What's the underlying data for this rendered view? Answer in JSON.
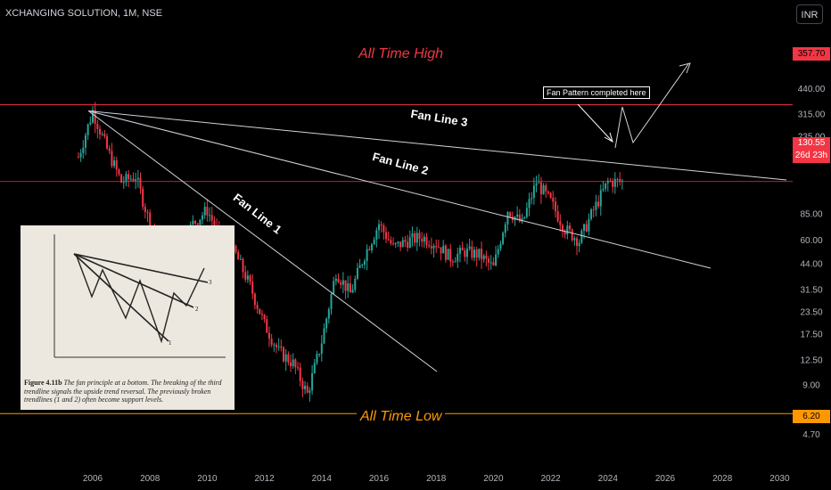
{
  "header": {
    "symbol": "XCHANGING SOLUTION, 1M, NSE",
    "currency": "INR"
  },
  "levels": {
    "ath": {
      "label": "All Time High",
      "value": 357.7,
      "tag": "357.70",
      "color": "#f23645"
    },
    "atl": {
      "label": "All Time Low",
      "value": 6.2,
      "tag": "6.20",
      "color": "#ff9800"
    },
    "current": {
      "value": 130.55,
      "tag": "130.55",
      "countdown": "26d 23h",
      "color": "#f23645"
    }
  },
  "annotations": {
    "fan_line_1": "Fan Line 1",
    "fan_line_2": "Fan Line 2",
    "fan_line_3": "Fan Line 3",
    "note": "Fan Pattern completed here"
  },
  "inset": {
    "figure_label": "Figure 4.11b",
    "caption": "The fan principle at a bottom. The breaking of the third trendline signals the upside trend reversal. The previously broken trendlines (1 and 2) often become support levels.",
    "line_labels": [
      "1",
      "2",
      "3"
    ]
  },
  "chart_data": {
    "type": "candlestick",
    "title": "XCHANGING SOLUTION, 1M, NSE",
    "y_scale": "log",
    "y_ticks": [
      "440.00",
      "315.00",
      "235.00",
      "175.00",
      "85.00",
      "60.00",
      "44.00",
      "31.50",
      "23.50",
      "17.50",
      "12.50",
      "9.00",
      "4.70"
    ],
    "x_ticks": [
      "2006",
      "2008",
      "2010",
      "2012",
      "2014",
      "2016",
      "2018",
      "2020",
      "2022",
      "2024",
      "2026",
      "2028",
      "2030"
    ],
    "anchors": [
      {
        "x": 2005.5,
        "y": 180
      },
      {
        "x": 2006.0,
        "y": 330
      },
      {
        "x": 2006.5,
        "y": 200
      },
      {
        "x": 2007.0,
        "y": 130
      },
      {
        "x": 2007.5,
        "y": 140
      },
      {
        "x": 2008.0,
        "y": 75
      },
      {
        "x": 2008.5,
        "y": 45
      },
      {
        "x": 2009.0,
        "y": 55
      },
      {
        "x": 2009.5,
        "y": 75
      },
      {
        "x": 2010.0,
        "y": 90
      },
      {
        "x": 2010.5,
        "y": 60
      },
      {
        "x": 2011.0,
        "y": 50
      },
      {
        "x": 2011.5,
        "y": 33
      },
      {
        "x": 2012.0,
        "y": 20
      },
      {
        "x": 2012.5,
        "y": 14
      },
      {
        "x": 2013.0,
        "y": 12
      },
      {
        "x": 2013.5,
        "y": 8
      },
      {
        "x": 2014.0,
        "y": 16
      },
      {
        "x": 2014.5,
        "y": 40
      },
      {
        "x": 2015.0,
        "y": 30
      },
      {
        "x": 2015.5,
        "y": 50
      },
      {
        "x": 2016.0,
        "y": 75
      },
      {
        "x": 2016.5,
        "y": 55
      },
      {
        "x": 2017.0,
        "y": 60
      },
      {
        "x": 2017.5,
        "y": 63
      },
      {
        "x": 2018.0,
        "y": 58
      },
      {
        "x": 2018.5,
        "y": 48
      },
      {
        "x": 2019.0,
        "y": 52
      },
      {
        "x": 2019.5,
        "y": 50
      },
      {
        "x": 2020.0,
        "y": 42
      },
      {
        "x": 2020.5,
        "y": 90
      },
      {
        "x": 2021.0,
        "y": 75
      },
      {
        "x": 2021.5,
        "y": 130
      },
      {
        "x": 2022.0,
        "y": 100
      },
      {
        "x": 2022.5,
        "y": 70
      },
      {
        "x": 2023.0,
        "y": 60
      },
      {
        "x": 2023.5,
        "y": 90
      },
      {
        "x": 2024.0,
        "y": 130
      },
      {
        "x": 2024.5,
        "y": 130.55
      }
    ]
  }
}
